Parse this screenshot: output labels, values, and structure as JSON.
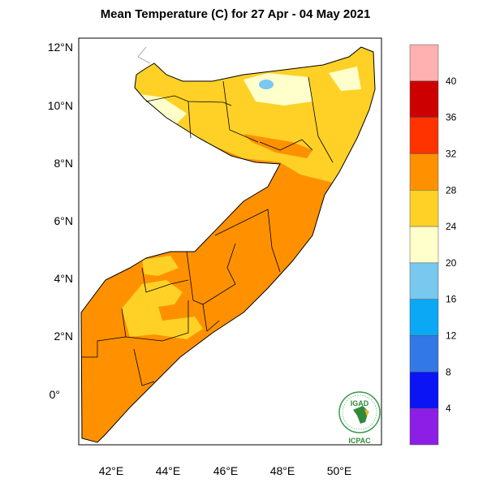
{
  "title": "Mean Temperature (C) for 27 Apr - 04 May 2021",
  "map": {
    "region": "Somalia",
    "lat_labels": [
      "12°N",
      "10°N",
      "8°N",
      "6°N",
      "4°N",
      "2°N",
      "0°"
    ],
    "lon_labels": [
      "42°E",
      "44°E",
      "46°E",
      "48°E",
      "50°E"
    ],
    "colors": {
      "land_hot": "#ff9100",
      "land_warm": "#ffd126",
      "land_mild": "#ffffcc",
      "land_cool": "#78c8f0",
      "border": "#000000",
      "outside": "#ffffff"
    }
  },
  "colorbar": {
    "labels": [
      "40",
      "36",
      "32",
      "28",
      "24",
      "20",
      "16",
      "12",
      "8",
      "4"
    ],
    "colors": [
      "#ffb0b0",
      "#cc0000",
      "#ff3300",
      "#ff9100",
      "#ffd126",
      "#ffffcc",
      "#78c8f0",
      "#0aa8f5",
      "#3278e6",
      "#0a14f5",
      "#8c1ee6"
    ]
  },
  "logo": {
    "top_text": "IGAD",
    "bottom_text": "ICPAC"
  }
}
